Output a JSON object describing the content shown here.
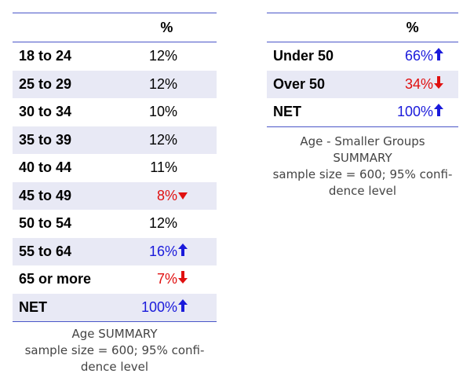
{
  "table_age": {
    "header": "%",
    "rows": [
      {
        "label": "18 to 24",
        "value": "12%",
        "arrow": "",
        "color": ""
      },
      {
        "label": "25 to 29",
        "value": "12%",
        "arrow": "",
        "color": ""
      },
      {
        "label": "30 to 34",
        "value": "10%",
        "arrow": "",
        "color": ""
      },
      {
        "label": "35 to 39",
        "value": "12%",
        "arrow": "",
        "color": ""
      },
      {
        "label": "40 to 44",
        "value": "11%",
        "arrow": "",
        "color": ""
      },
      {
        "label": "45 to 49",
        "value": "8%",
        "arrow": "down-small",
        "color": "#e01010"
      },
      {
        "label": "50 to 54",
        "value": "12%",
        "arrow": "",
        "color": ""
      },
      {
        "label": "55 to 64",
        "value": "16%",
        "arrow": "up",
        "color": "#1a1adb"
      },
      {
        "label": "65 or more",
        "value": "7%",
        "arrow": "down",
        "color": "#e01010"
      },
      {
        "label": "NET",
        "value": "100%",
        "arrow": "up",
        "color": "#1a1adb"
      }
    ],
    "caption": [
      "Age SUMMARY",
      "sample size = 600; 95% confi-",
      "dence level"
    ]
  },
  "table_groups": {
    "header": "%",
    "rows": [
      {
        "label": "Under 50",
        "value": "66%",
        "arrow": "up",
        "color": "#1a1adb"
      },
      {
        "label": "Over 50",
        "value": "34%",
        "arrow": "down",
        "color": "#e01010"
      },
      {
        "label": "NET",
        "value": "100%",
        "arrow": "up",
        "color": "#1a1adb"
      }
    ],
    "caption": [
      "Age - Smaller Groups",
      "SUMMARY",
      "sample size = 600; 95% confi-",
      "dence level"
    ]
  },
  "colors": {
    "shade": "#e8e9f5",
    "rule": "#4a56c8",
    "up": "#1a1adb",
    "down": "#e01010"
  }
}
